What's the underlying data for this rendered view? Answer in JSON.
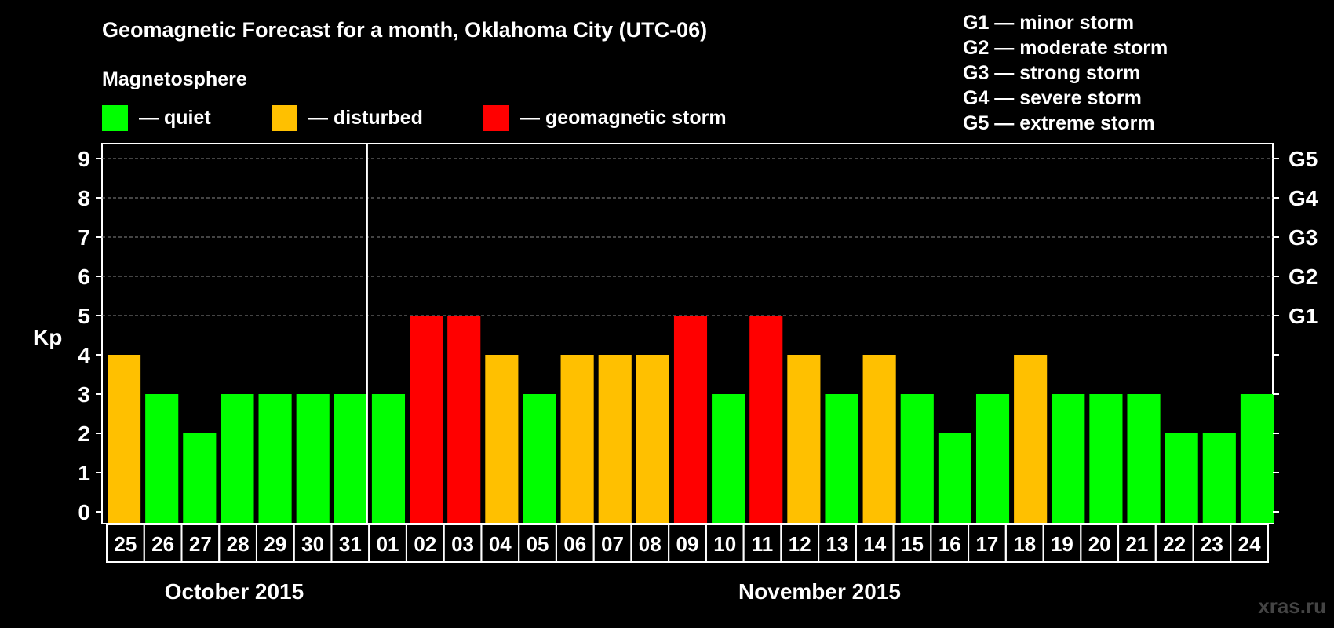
{
  "title": "Geomagnetic Forecast for a month, Oklahoma City (UTC-06)",
  "watermark": "xras.ru",
  "magnetosphere": {
    "label": "Magnetosphere",
    "items": [
      {
        "label": "— quiet",
        "color": "#00ff00"
      },
      {
        "label": "— disturbed",
        "color": "#ffc000"
      },
      {
        "label": "— geomagnetic storm",
        "color": "#ff0000"
      }
    ]
  },
  "storm_levels": [
    "G1 — minor storm",
    "G2 — moderate storm",
    "G3 — strong storm",
    "G4 — severe storm",
    "G5 — extreme storm"
  ],
  "chart_data": {
    "type": "bar",
    "ylabel": "Kp",
    "ylim": [
      0,
      9
    ],
    "yticks": [
      "0",
      "1",
      "2",
      "3",
      "4",
      "5",
      "6",
      "7",
      "8",
      "9"
    ],
    "right_ticks": [
      {
        "value": 5,
        "label": "G1"
      },
      {
        "value": 6,
        "label": "G2"
      },
      {
        "value": 7,
        "label": "G3"
      },
      {
        "value": 8,
        "label": "G4"
      },
      {
        "value": 9,
        "label": "G5"
      }
    ],
    "grid": true,
    "categories": [
      "25",
      "26",
      "27",
      "28",
      "29",
      "30",
      "31",
      "01",
      "02",
      "03",
      "04",
      "05",
      "06",
      "07",
      "08",
      "09",
      "10",
      "11",
      "12",
      "13",
      "14",
      "15",
      "16",
      "17",
      "18",
      "19",
      "20",
      "21",
      "22",
      "23",
      "24"
    ],
    "values": [
      4,
      3,
      2,
      3,
      3,
      3,
      3,
      3,
      5,
      5,
      4,
      3,
      4,
      4,
      4,
      5,
      3,
      5,
      4,
      3,
      4,
      3,
      2,
      3,
      4,
      3,
      3,
      3,
      2,
      2,
      3
    ],
    "months": [
      {
        "label": "October 2015",
        "start_index": 0,
        "end_index": 6
      },
      {
        "label": "November 2015",
        "start_index": 7,
        "end_index": 30
      }
    ],
    "month_divider_after_index": 6,
    "color_rule": {
      "quiet_max": 3,
      "disturbed": 4,
      "storm_min": 5
    }
  }
}
